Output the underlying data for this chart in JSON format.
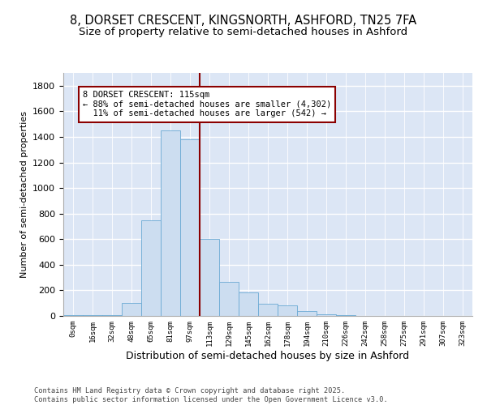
{
  "title_line1": "8, DORSET CRESCENT, KINGSNORTH, ASHFORD, TN25 7FA",
  "title_line2": "Size of property relative to semi-detached houses in Ashford",
  "xlabel": "Distribution of semi-detached houses by size in Ashford",
  "ylabel": "Number of semi-detached properties",
  "bin_labels": [
    "0sqm",
    "16sqm",
    "32sqm",
    "48sqm",
    "65sqm",
    "81sqm",
    "97sqm",
    "113sqm",
    "129sqm",
    "145sqm",
    "162sqm",
    "178sqm",
    "194sqm",
    "210sqm",
    "226sqm",
    "242sqm",
    "258sqm",
    "275sqm",
    "291sqm",
    "307sqm",
    "323sqm"
  ],
  "bar_values": [
    5,
    5,
    5,
    100,
    750,
    1450,
    1380,
    600,
    265,
    185,
    95,
    80,
    40,
    15,
    5,
    2,
    1,
    0,
    0,
    0,
    0
  ],
  "bar_color": "#ccddf0",
  "bar_edge_color": "#6aaad4",
  "vline_color": "#8b0000",
  "annotation_text": "8 DORSET CRESCENT: 115sqm\n← 88% of semi-detached houses are smaller (4,302)\n  11% of semi-detached houses are larger (542) →",
  "annotation_box_color": "white",
  "annotation_box_edge_color": "#8b0000",
  "ylim": [
    0,
    1900
  ],
  "yticks": [
    0,
    200,
    400,
    600,
    800,
    1000,
    1200,
    1400,
    1600,
    1800
  ],
  "bg_color": "#dce6f5",
  "grid_color": "white",
  "footnote": "Contains HM Land Registry data © Crown copyright and database right 2025.\nContains public sector information licensed under the Open Government Licence v3.0.",
  "title_fontsize": 10.5,
  "subtitle_fontsize": 9.5,
  "annotation_fontsize": 7.5,
  "xlabel_fontsize": 9,
  "ylabel_fontsize": 8
}
